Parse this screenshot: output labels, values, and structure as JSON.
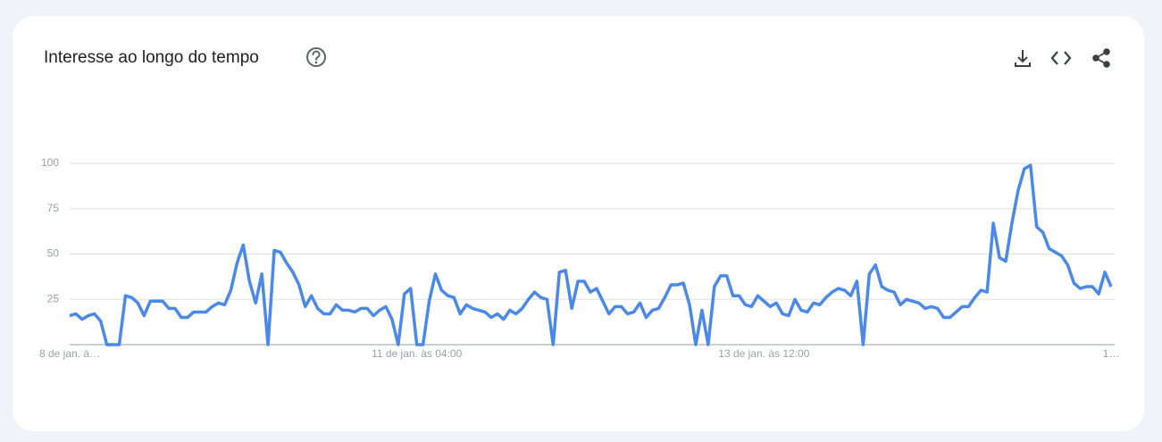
{
  "chart_data": {
    "type": "line",
    "title": "Interesse ao longo do tempo",
    "categories": [
      "8 de jan. à…",
      null,
      null,
      null,
      null,
      null,
      null,
      null,
      null,
      null,
      null,
      null,
      null,
      null,
      null,
      null,
      null,
      null,
      null,
      null,
      null,
      null,
      null,
      null,
      null,
      null,
      null,
      null,
      null,
      null,
      null,
      null,
      null,
      null,
      null,
      null,
      null,
      null,
      null,
      null,
      null,
      null,
      null,
      null,
      null,
      null,
      null,
      null,
      null,
      null,
      null,
      null,
      null,
      null,
      null,
      null,
      "11 de jan. às 04:00",
      null,
      null,
      null,
      null,
      null,
      null,
      null,
      null,
      null,
      null,
      null,
      null,
      null,
      null,
      null,
      null,
      null,
      null,
      null,
      null,
      null,
      null,
      null,
      null,
      null,
      null,
      null,
      null,
      null,
      null,
      null,
      null,
      null,
      null,
      null,
      null,
      null,
      null,
      null,
      null,
      null,
      null,
      null,
      null,
      null,
      null,
      null,
      null,
      null,
      null,
      null,
      null,
      null,
      null,
      null,
      "13 de jan. às 12:00",
      null,
      null,
      null,
      null,
      null,
      null,
      null,
      null,
      null,
      null,
      null,
      null,
      null,
      null,
      null,
      null,
      null,
      null,
      null,
      null,
      null,
      null,
      null,
      null,
      null,
      null,
      null,
      null,
      null,
      null,
      null,
      null,
      null,
      null,
      null,
      null,
      null,
      null,
      null,
      null,
      null,
      null,
      null,
      null,
      null,
      null,
      null,
      null,
      null,
      null,
      null,
      null,
      null,
      null,
      null,
      "1…"
    ],
    "values": [
      16,
      17,
      14,
      16,
      17,
      13,
      0,
      0,
      0,
      27,
      26,
      23,
      16,
      24,
      24,
      24,
      20,
      20,
      15,
      15,
      18,
      18,
      18,
      21,
      23,
      22,
      30,
      45,
      55,
      35,
      23,
      39,
      0,
      52,
      51,
      45,
      40,
      33,
      21,
      27,
      20,
      17,
      17,
      22,
      19,
      19,
      18,
      20,
      20,
      16,
      19,
      21,
      14,
      0,
      28,
      31,
      0,
      0,
      24,
      39,
      30,
      27,
      26,
      17,
      22,
      20,
      19,
      18,
      15,
      17,
      14,
      19,
      17,
      20,
      25,
      29,
      26,
      25,
      0,
      40,
      41,
      20,
      35,
      35,
      29,
      31,
      24,
      17,
      21,
      21,
      17,
      18,
      23,
      15,
      19,
      20,
      26,
      33,
      33,
      34,
      22,
      0,
      19,
      0,
      32,
      38,
      38,
      27,
      27,
      22,
      21,
      27,
      24,
      21,
      23,
      17,
      16,
      25,
      19,
      18,
      23,
      22,
      26,
      29,
      31,
      30,
      27,
      35,
      0,
      39,
      44,
      32,
      30,
      29,
      22,
      25,
      24,
      23,
      20,
      21,
      20,
      15,
      15,
      18,
      21,
      21,
      26,
      30,
      29,
      67,
      48,
      46,
      67,
      85,
      97,
      99,
      65,
      62,
      53,
      51,
      49,
      44,
      34,
      31,
      32,
      32,
      28,
      40,
      32
    ],
    "color": "#4a89e8",
    "ylim": [
      0,
      100
    ],
    "yticks": [
      25,
      50,
      75,
      100
    ],
    "grid": true
  }
}
